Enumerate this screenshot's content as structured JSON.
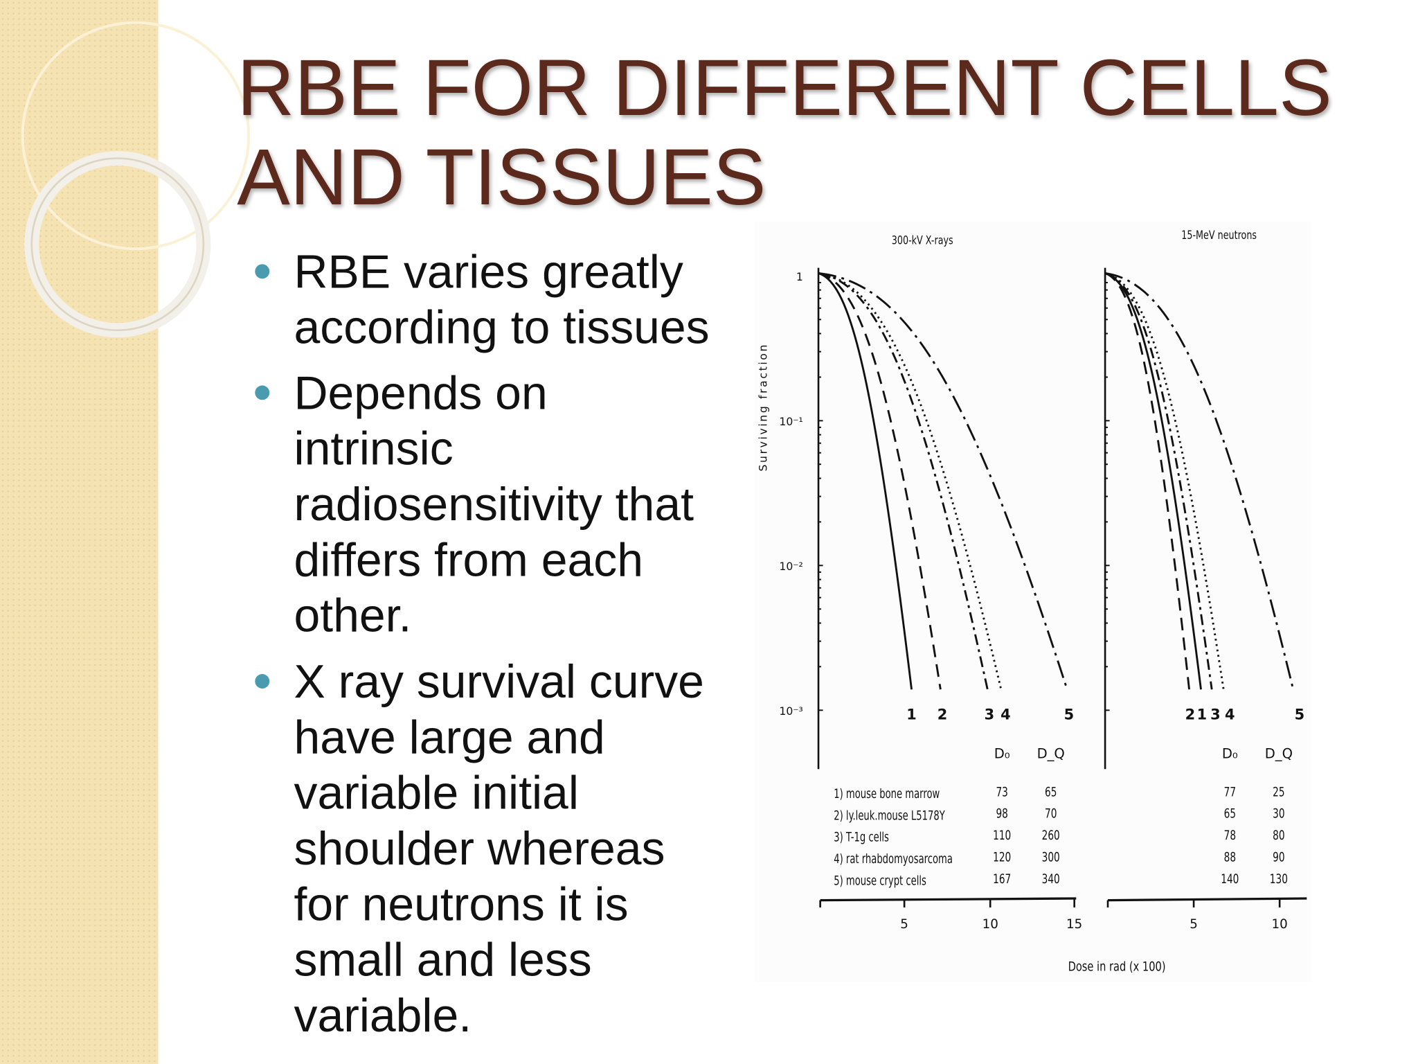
{
  "slide": {
    "title_lines": [
      "RBE FOR DIFFERENT CELLS",
      "AND TISSUES"
    ],
    "bullets": [
      [
        "RBE varies greatly",
        "according to tissues"
      ],
      [
        "Depends on",
        "intrinsic",
        "radiosensitivity that",
        "differs from each",
        "other."
      ],
      [
        "X ray survival curve",
        "have large and",
        "variable initial",
        "shoulder whereas",
        "for neutrons it is",
        "small and less",
        "variable."
      ]
    ],
    "figure": {
      "y_axis_label": "Surviving fraction",
      "y_tick_labels": [
        "1",
        "10⁻¹",
        "10⁻²",
        "10⁻³"
      ],
      "x_axis_label": "Dose in rad (x 100)",
      "row_labels": [
        "1) mouse bone marrow",
        "2) ly.leuk.mouse L5178Y",
        "3) T-1g cells",
        "4) rat rhabdomyosarcoma",
        "5) mouse crypt cells"
      ],
      "panels": [
        {
          "title": "300-kV X-rays",
          "curve_labels": [
            "1",
            "2",
            "3",
            "4",
            "5"
          ],
          "columns": [
            "D₀",
            "D_Q"
          ],
          "rows": [
            [
              "73",
              "65"
            ],
            [
              "98",
              "70"
            ],
            [
              "110",
              "260"
            ],
            [
              "120",
              "300"
            ],
            [
              "167",
              "340"
            ]
          ],
          "x_tick_labels": [
            "5",
            "10",
            "15"
          ]
        },
        {
          "title": "15-MeV neutrons",
          "curve_labels": [
            "2",
            "1",
            "3",
            "4",
            "5"
          ],
          "columns": [
            "D₀",
            "D_Q"
          ],
          "rows": [
            [
              "77",
              "25"
            ],
            [
              "65",
              "30"
            ],
            [
              "78",
              "80"
            ],
            [
              "88",
              "90"
            ],
            [
              "140",
              "130"
            ]
          ],
          "x_tick_labels": [
            "5",
            "10"
          ]
        }
      ]
    }
  }
}
